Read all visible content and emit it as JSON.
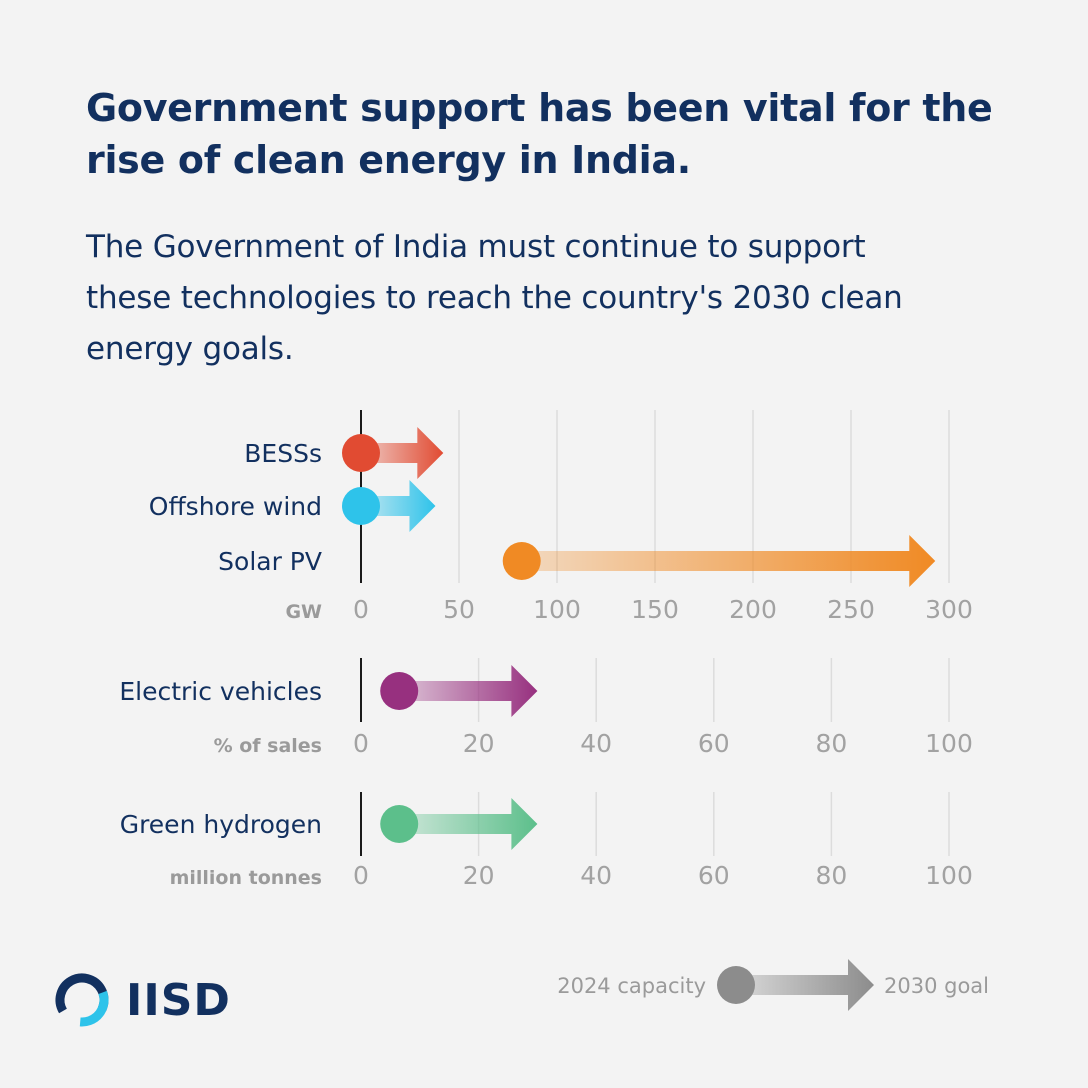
{
  "header": {
    "title": "Government support has been vital for the rise of clean energy in India.",
    "subtitle": "The Government of India must continue to support these technologies to reach the country's 2030 clean energy goals."
  },
  "colors": {
    "text_navy": "#12305f",
    "axis_grey": "#a2a2a2",
    "grid": "#dcdcdc"
  },
  "chart_data": [
    {
      "type": "range-arrow",
      "unit": "GW",
      "xlim": [
        0,
        300
      ],
      "ticks": [
        0,
        50,
        100,
        150,
        200,
        250,
        300
      ],
      "series": [
        {
          "name": "BESSs",
          "start": 0,
          "goal": 42,
          "color": "#e14b32"
        },
        {
          "name": "Offshore wind",
          "start": 0,
          "goal": 38,
          "color": "#2ec3ea"
        },
        {
          "name": "Solar PV",
          "start": 82,
          "goal": 293,
          "color": "#f08a24"
        }
      ]
    },
    {
      "type": "range-arrow",
      "unit": "% of sales",
      "xlim": [
        0,
        100
      ],
      "ticks": [
        0,
        20,
        40,
        60,
        80,
        100
      ],
      "series": [
        {
          "name": "Electric vehicles",
          "start": 6.5,
          "goal": 30,
          "color": "#97307f"
        }
      ]
    },
    {
      "type": "range-arrow",
      "unit": "million tonnes",
      "xlim": [
        0,
        100
      ],
      "ticks": [
        0,
        20,
        40,
        60,
        80,
        100
      ],
      "series": [
        {
          "name": "Green hydrogen",
          "start": 6.5,
          "goal": 30,
          "color": "#5cbf8b"
        }
      ]
    }
  ],
  "legend": {
    "start_label": "2024 capacity",
    "end_label": "2030 goal",
    "color": "#8c8c8c"
  },
  "logo": {
    "text": "IISD"
  }
}
